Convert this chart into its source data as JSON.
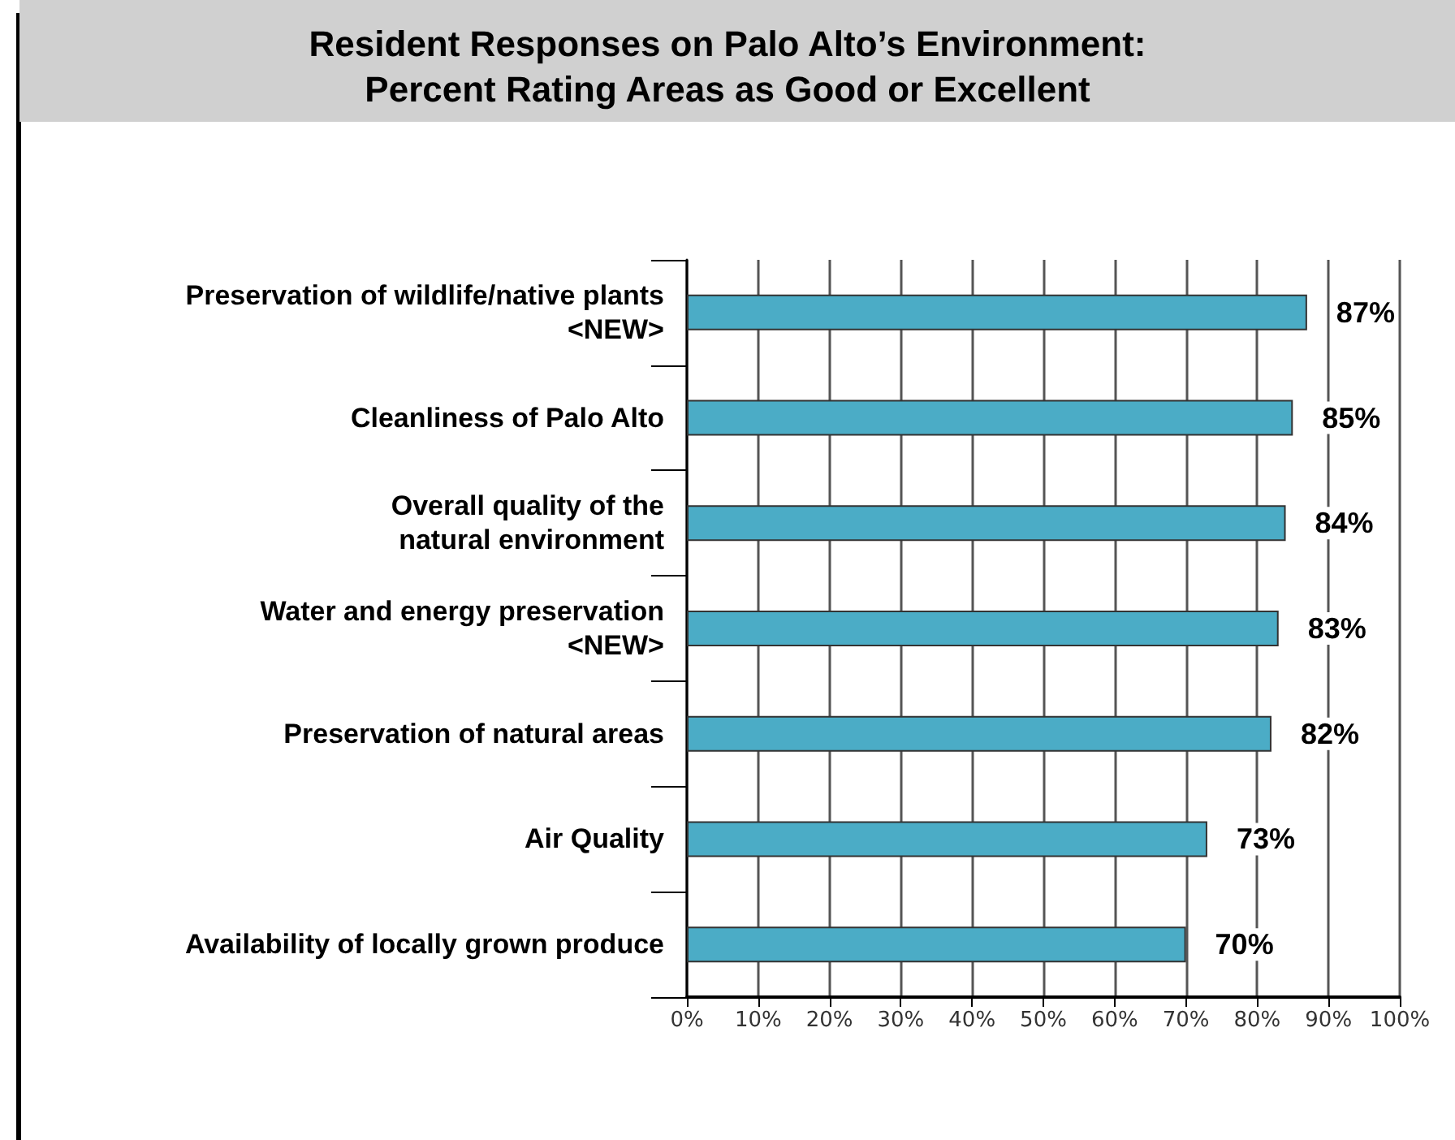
{
  "chart_data": {
    "type": "bar",
    "orientation": "horizontal",
    "title": "Resident Responses on Palo Alto’s Environment:\nPercent Rating Areas as Good or Excellent",
    "categories": [
      "Preservation of wildlife/native plants\n<NEW>",
      "Cleanliness of Palo Alto",
      "Overall quality of the\nnatural environment",
      "Water and energy preservation\n<NEW>",
      "Preservation of natural areas",
      "Air Quality",
      "Availability of locally grown produce"
    ],
    "values": [
      87,
      85,
      84,
      83,
      82,
      73,
      70
    ],
    "value_labels": [
      "87%",
      "85%",
      "84%",
      "83%",
      "82%",
      "73%",
      "70%"
    ],
    "color": "#4bacc6",
    "xlim": [
      0,
      100
    ],
    "xticks": [
      {
        "value": 0,
        "label": "0%"
      },
      {
        "value": 10,
        "label": "10%"
      },
      {
        "value": 20,
        "label": "20%"
      },
      {
        "value": 30,
        "label": "30%"
      },
      {
        "value": 40,
        "label": "40%"
      },
      {
        "value": 50,
        "label": "50%"
      },
      {
        "value": 60,
        "label": "60%"
      },
      {
        "value": 70,
        "label": "70%"
      },
      {
        "value": 80,
        "label": "80%"
      },
      {
        "value": 90,
        "label": "90%"
      },
      {
        "value": 100,
        "label": "100%"
      }
    ],
    "grid": "x"
  }
}
